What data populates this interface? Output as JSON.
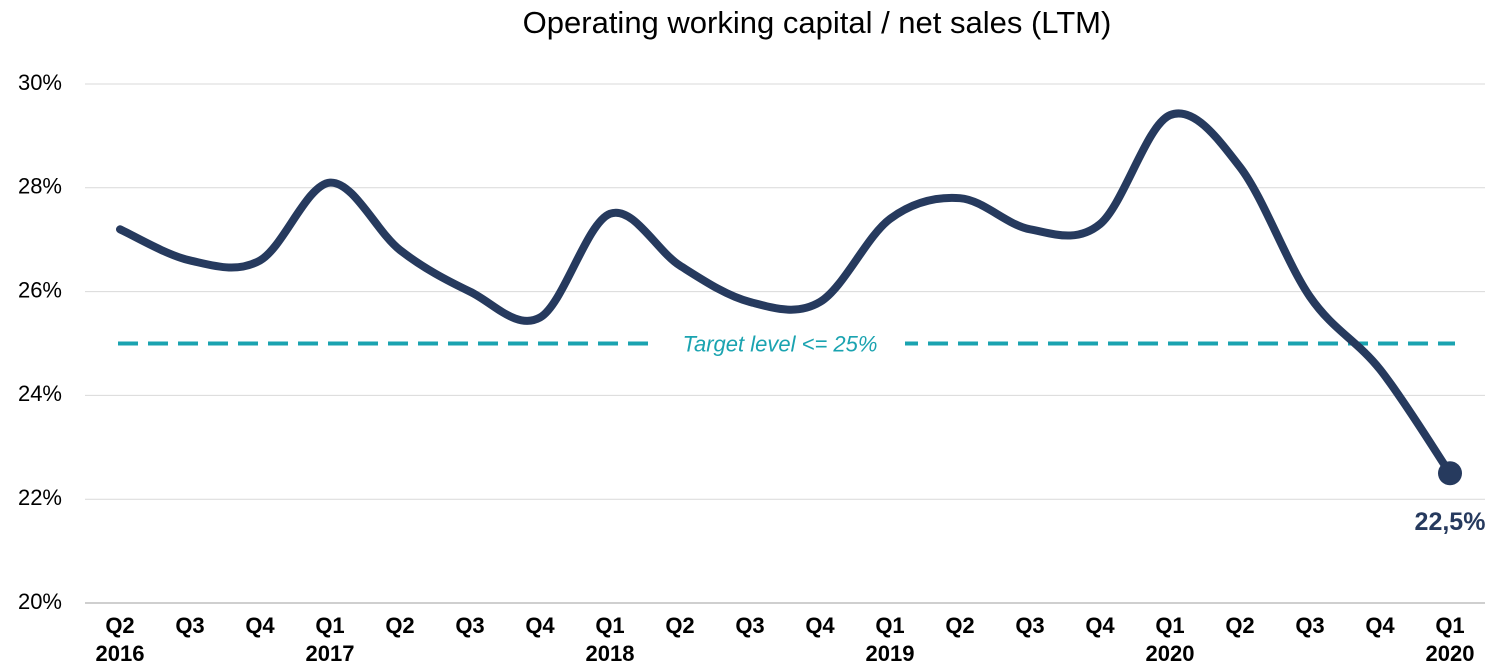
{
  "chart_data": {
    "type": "line",
    "title": "Operating working capital / net sales (LTM)",
    "categories": [
      "Q2",
      "Q3",
      "Q4",
      "Q1",
      "Q2",
      "Q3",
      "Q4",
      "Q1",
      "Q2",
      "Q3",
      "Q4",
      "Q1",
      "Q2",
      "Q3",
      "Q4",
      "Q1",
      "Q2",
      "Q3",
      "Q4",
      "Q1"
    ],
    "category_years": [
      "2016",
      null,
      null,
      "2017",
      null,
      null,
      null,
      "2018",
      null,
      null,
      null,
      "2019",
      null,
      null,
      null,
      "2020",
      null,
      null,
      null,
      "2020"
    ],
    "series": [
      {
        "name": "Operating working capital / net sales",
        "color": "#263a5e",
        "values": [
          27.2,
          26.6,
          26.6,
          28.1,
          26.8,
          26.0,
          25.5,
          27.5,
          26.5,
          25.8,
          25.8,
          27.4,
          27.8,
          27.2,
          27.3,
          29.4,
          28.4,
          25.9,
          24.5,
          22.5
        ],
        "value_labels": [
          null,
          null,
          null,
          null,
          null,
          null,
          null,
          null,
          null,
          null,
          null,
          null,
          null,
          null,
          null,
          null,
          null,
          null,
          null,
          "22,5%"
        ]
      }
    ],
    "target": {
      "value": 25,
      "label": "Target level <= 25%",
      "color": "#1aa3b0"
    },
    "ylim": [
      20,
      30
    ],
    "yticks": [
      {
        "value": 20,
        "label": "20%"
      },
      {
        "value": 22,
        "label": "22%"
      },
      {
        "value": 24,
        "label": "24%"
      },
      {
        "value": 26,
        "label": "26%"
      },
      {
        "value": 28,
        "label": "28%"
      },
      {
        "value": 30,
        "label": "30%"
      }
    ],
    "grid": true
  }
}
